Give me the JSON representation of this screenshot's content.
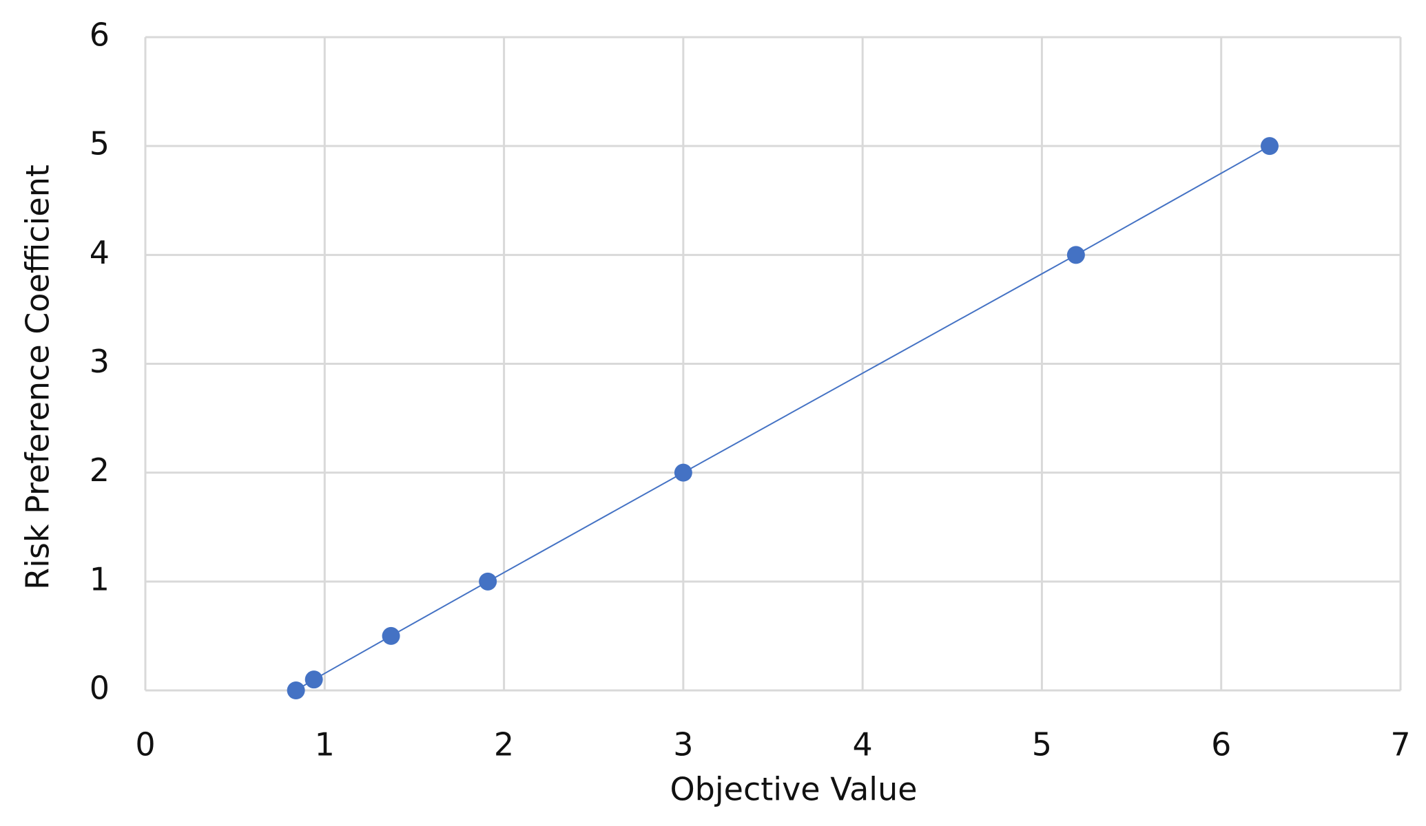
{
  "chart_data": {
    "type": "scatter",
    "xlabel": "Objective Value",
    "ylabel": "Risk Preference Coefficient",
    "x": [
      0.84,
      0.94,
      1.37,
      1.91,
      3.0,
      5.19,
      6.27
    ],
    "values": [
      0,
      0.1,
      0.5,
      1,
      2,
      4,
      5
    ],
    "color": "#4472c4",
    "line": true,
    "xlim": [
      0,
      7
    ],
    "ylim": [
      0,
      6
    ],
    "xticks": [
      0,
      1,
      2,
      3,
      4,
      5,
      6,
      7
    ],
    "yticks": [
      0,
      1,
      2,
      3,
      4,
      5,
      6
    ],
    "grid": true
  }
}
